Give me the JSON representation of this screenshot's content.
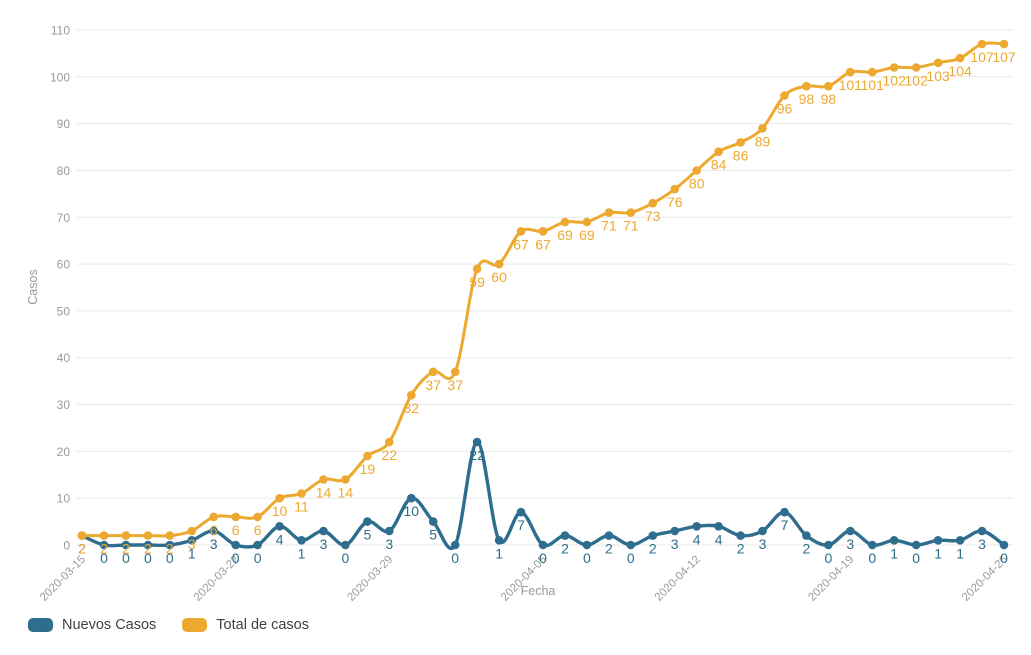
{
  "chart_data": {
    "type": "line",
    "title": "",
    "xlabel": "Fecha",
    "ylabel": "Casos",
    "ylim": [
      0,
      110
    ],
    "y_ticks": [
      0,
      10,
      20,
      30,
      40,
      50,
      60,
      70,
      80,
      90,
      100,
      110
    ],
    "grid": true,
    "legend_position": "bottom-left",
    "data_labels": true,
    "x_tick_rotation": -45,
    "x": [
      "2020-03-15",
      "2020-03-16",
      "2020-03-17",
      "2020-03-18",
      "2020-03-19",
      "2020-03-20",
      "2020-03-21",
      "2020-03-22",
      "2020-03-23",
      "2020-03-24",
      "2020-03-25",
      "2020-03-26",
      "2020-03-27",
      "2020-03-28",
      "2020-03-29",
      "2020-03-30",
      "2020-03-31",
      "2020-04-01",
      "2020-04-02",
      "2020-04-03",
      "2020-04-04",
      "2020-04-05",
      "2020-04-06",
      "2020-04-07",
      "2020-04-08",
      "2020-04-09",
      "2020-04-10",
      "2020-04-11",
      "2020-04-12",
      "2020-04-13",
      "2020-04-14",
      "2020-04-15",
      "2020-04-16",
      "2020-04-17",
      "2020-04-18",
      "2020-04-19",
      "2020-04-20",
      "2020-04-21",
      "2020-04-22",
      "2020-04-23",
      "2020-04-24",
      "2020-04-25",
      "2020-04-26"
    ],
    "x_ticks": [
      "2020-03-15",
      "2020-03-22",
      "2020-03-29",
      "2020-04-05",
      "2020-04-12",
      "2020-04-19",
      "2020-04-26"
    ],
    "series": [
      {
        "name": "Nuevos Casos",
        "color": "#2E6D8E",
        "values": [
          2,
          0,
          0,
          0,
          0,
          1,
          3,
          0,
          0,
          4,
          1,
          3,
          0,
          5,
          3,
          10,
          5,
          0,
          22,
          1,
          7,
          0,
          2,
          0,
          2,
          0,
          2,
          3,
          4,
          4,
          2,
          3,
          7,
          2,
          0,
          3,
          0,
          1,
          0,
          1,
          1,
          3,
          0
        ]
      },
      {
        "name": "Total de casos",
        "color": "#EDA92F",
        "values": [
          2,
          2,
          2,
          2,
          2,
          3,
          6,
          6,
          6,
          10,
          11,
          14,
          14,
          19,
          22,
          32,
          37,
          37,
          59,
          60,
          67,
          67,
          69,
          69,
          71,
          71,
          73,
          76,
          80,
          84,
          86,
          89,
          96,
          98,
          98,
          101,
          101,
          102,
          102,
          103,
          104,
          107,
          107
        ]
      }
    ]
  },
  "styles": {
    "background": "#ffffff",
    "grid_color": "#eaeaea",
    "tick_text_color": "#9b9b9b",
    "axis_title_color": "#999999",
    "legend_text_color": "#404040"
  }
}
